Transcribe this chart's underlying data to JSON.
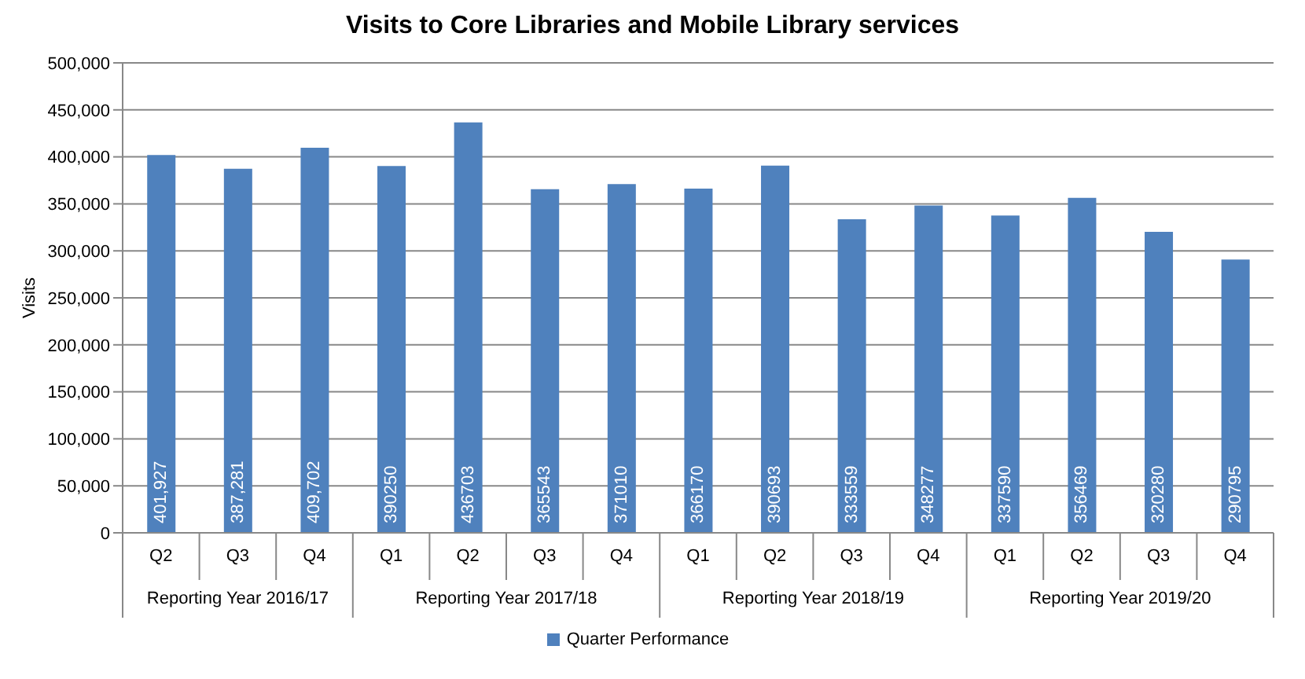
{
  "chart_data": {
    "type": "bar",
    "title": "Visits to Core Libraries and Mobile Library services",
    "ylabel": "Visits",
    "categories": [
      "Q2",
      "Q3",
      "Q4",
      "Q1",
      "Q2",
      "Q3",
      "Q4",
      "Q1",
      "Q2",
      "Q3",
      "Q4",
      "Q1",
      "Q2",
      "Q3",
      "Q4"
    ],
    "series": [
      {
        "name": "Quarter Performance",
        "color": "#4f81bd",
        "values": [
          401927,
          387281,
          409702,
          390250,
          436703,
          365543,
          371010,
          366170,
          390693,
          333559,
          348277,
          337590,
          356469,
          320280,
          290795
        ],
        "value_labels": [
          "401,927",
          "387,281",
          "409,702",
          "390250",
          "436703",
          "365543",
          "371010",
          "366170",
          "390693",
          "333559",
          "348277",
          "337590",
          "356469",
          "320280",
          "290795"
        ]
      }
    ],
    "annotations": [
      "Reporting Year 2016/17",
      "Reporting Year 2017/18",
      "Reporting Year 2018/19",
      "Reporting Year 2019/20"
    ],
    "ylim": [
      0,
      500000
    ],
    "yticks": [
      {
        "value": 0,
        "label": "0"
      },
      {
        "value": 50000,
        "label": "50,000"
      },
      {
        "value": 100000,
        "label": "100,000"
      },
      {
        "value": 150000,
        "label": "150,000"
      },
      {
        "value": 200000,
        "label": "200,000"
      },
      {
        "value": 250000,
        "label": "250,000"
      },
      {
        "value": 300000,
        "label": "300,000"
      },
      {
        "value": 350000,
        "label": "350,000"
      },
      {
        "value": 400000,
        "label": "400,000"
      },
      {
        "value": 450000,
        "label": "450,000"
      },
      {
        "value": 500000,
        "label": "500,000"
      }
    ],
    "grid": "y",
    "legend": "bottom"
  }
}
